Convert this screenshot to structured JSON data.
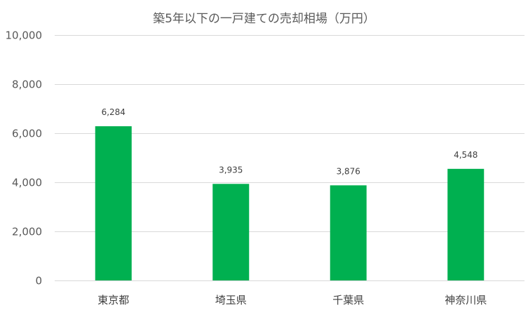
{
  "chart_data": {
    "type": "bar",
    "title": "築5年以下の一戸建ての売却相場（万円）",
    "categories": [
      "東京都",
      "埼玉県",
      "千葉県",
      "神奈川県"
    ],
    "values": [
      6284,
      3935,
      3876,
      4548
    ],
    "data_labels": [
      "6,284",
      "3,935",
      "3,876",
      "4,548"
    ],
    "ylim": [
      0,
      10000
    ],
    "yticks": [
      0,
      2000,
      4000,
      6000,
      8000,
      10000
    ],
    "ytick_labels": [
      "0",
      "2,000",
      "4,000",
      "6,000",
      "8,000",
      "10,000"
    ],
    "xlabel": "",
    "ylabel": "",
    "grid": true,
    "legend": "none",
    "colors": {
      "bar": "#00b050",
      "grid": "#d9d9d9",
      "axis_text": "#595959",
      "category_text": "#404040",
      "label_text": "#404040"
    }
  }
}
